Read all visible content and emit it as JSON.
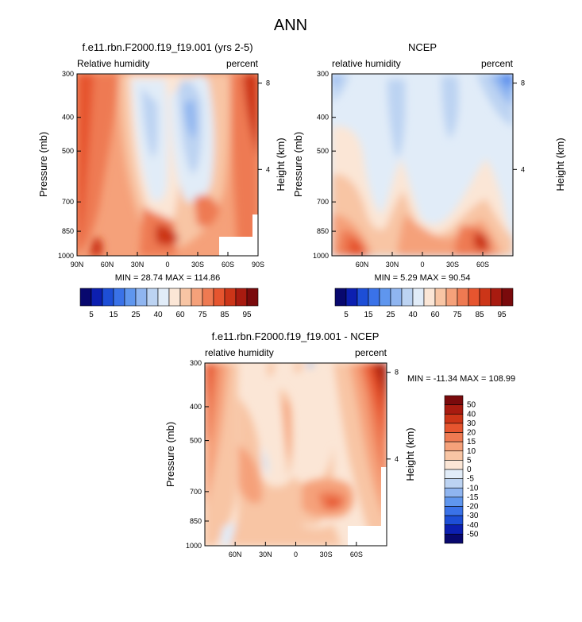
{
  "main_title": "ANN",
  "colorbar_levels": [
    "5",
    "15",
    "25",
    "40",
    "60",
    "75",
    "85",
    "95"
  ],
  "diff_colorbar_levels": [
    "50",
    "40",
    "30",
    "20",
    "15",
    "10",
    "5",
    "0",
    "-5",
    "-10",
    "-15",
    "-20",
    "-30",
    "-40",
    "-50"
  ],
  "chart_data": [
    {
      "type": "heatmap",
      "title": "f.e11.rbn.F2000.f19_f19.001 (yrs 2-5)",
      "left_label": "Relative humidity",
      "right_label": "percent",
      "ylabel": "Pressure (mb)",
      "ylabel_right": "Height (km)",
      "x_ticks": [
        "90N",
        "60N",
        "30N",
        "0",
        "30S",
        "60S",
        "90S"
      ],
      "y_ticks": [
        "300",
        "400",
        "500",
        "700",
        "850",
        "1000"
      ],
      "y_right_ticks": [
        "8",
        "4"
      ],
      "stats": "MIN = 28.74  MAX = 114.86",
      "min": 28.74,
      "max": 114.86
    },
    {
      "type": "heatmap",
      "title": "NCEP",
      "left_label": "relative humidity",
      "right_label": "percent",
      "ylabel": "Pressure (mb)",
      "ylabel_right": "Height (km)",
      "x_ticks": [
        "60N",
        "30N",
        "0",
        "30S",
        "60S"
      ],
      "y_ticks": [
        "300",
        "400",
        "500",
        "700",
        "850",
        "1000"
      ],
      "y_right_ticks": [
        "8",
        "4"
      ],
      "stats": "MIN =  5.29  MAX = 90.54",
      "min": 5.29,
      "max": 90.54
    },
    {
      "type": "heatmap",
      "title": "f.e11.rbn.F2000.f19_f19.001 - NCEP",
      "left_label": "relative humidity",
      "right_label": "percent",
      "ylabel": "Pressure (mb)",
      "ylabel_right": "Height (km)",
      "x_ticks": [
        "60N",
        "30N",
        "0",
        "30S",
        "60S"
      ],
      "y_ticks": [
        "300",
        "400",
        "500",
        "700",
        "850",
        "1000"
      ],
      "y_right_ticks": [
        "8",
        "4"
      ],
      "stats": "MIN = -11.34  MAX = 108.99",
      "min": -11.34,
      "max": 108.99
    }
  ],
  "colors": {
    "seq": [
      "#08086e",
      "#0c1fb0",
      "#1d4ed6",
      "#3a72e8",
      "#5f96ee",
      "#8fb5f0",
      "#bcd3f2",
      "#e1ecf8",
      "#fbe6d6",
      "#f8c5a4",
      "#f5a17a",
      "#ee7a52",
      "#e6552f",
      "#cc3518",
      "#a81b10",
      "#7a0a0c"
    ],
    "diff": [
      "#7a0a0c",
      "#a81b10",
      "#cc3518",
      "#e6552f",
      "#ee7a52",
      "#f5a17a",
      "#f8c5a4",
      "#fbe6d6",
      "#e1ecf8",
      "#bcd3f2",
      "#8fb5f0",
      "#5f96ee",
      "#3a72e8",
      "#1d4ed6",
      "#0c1fb0",
      "#08086e"
    ]
  }
}
